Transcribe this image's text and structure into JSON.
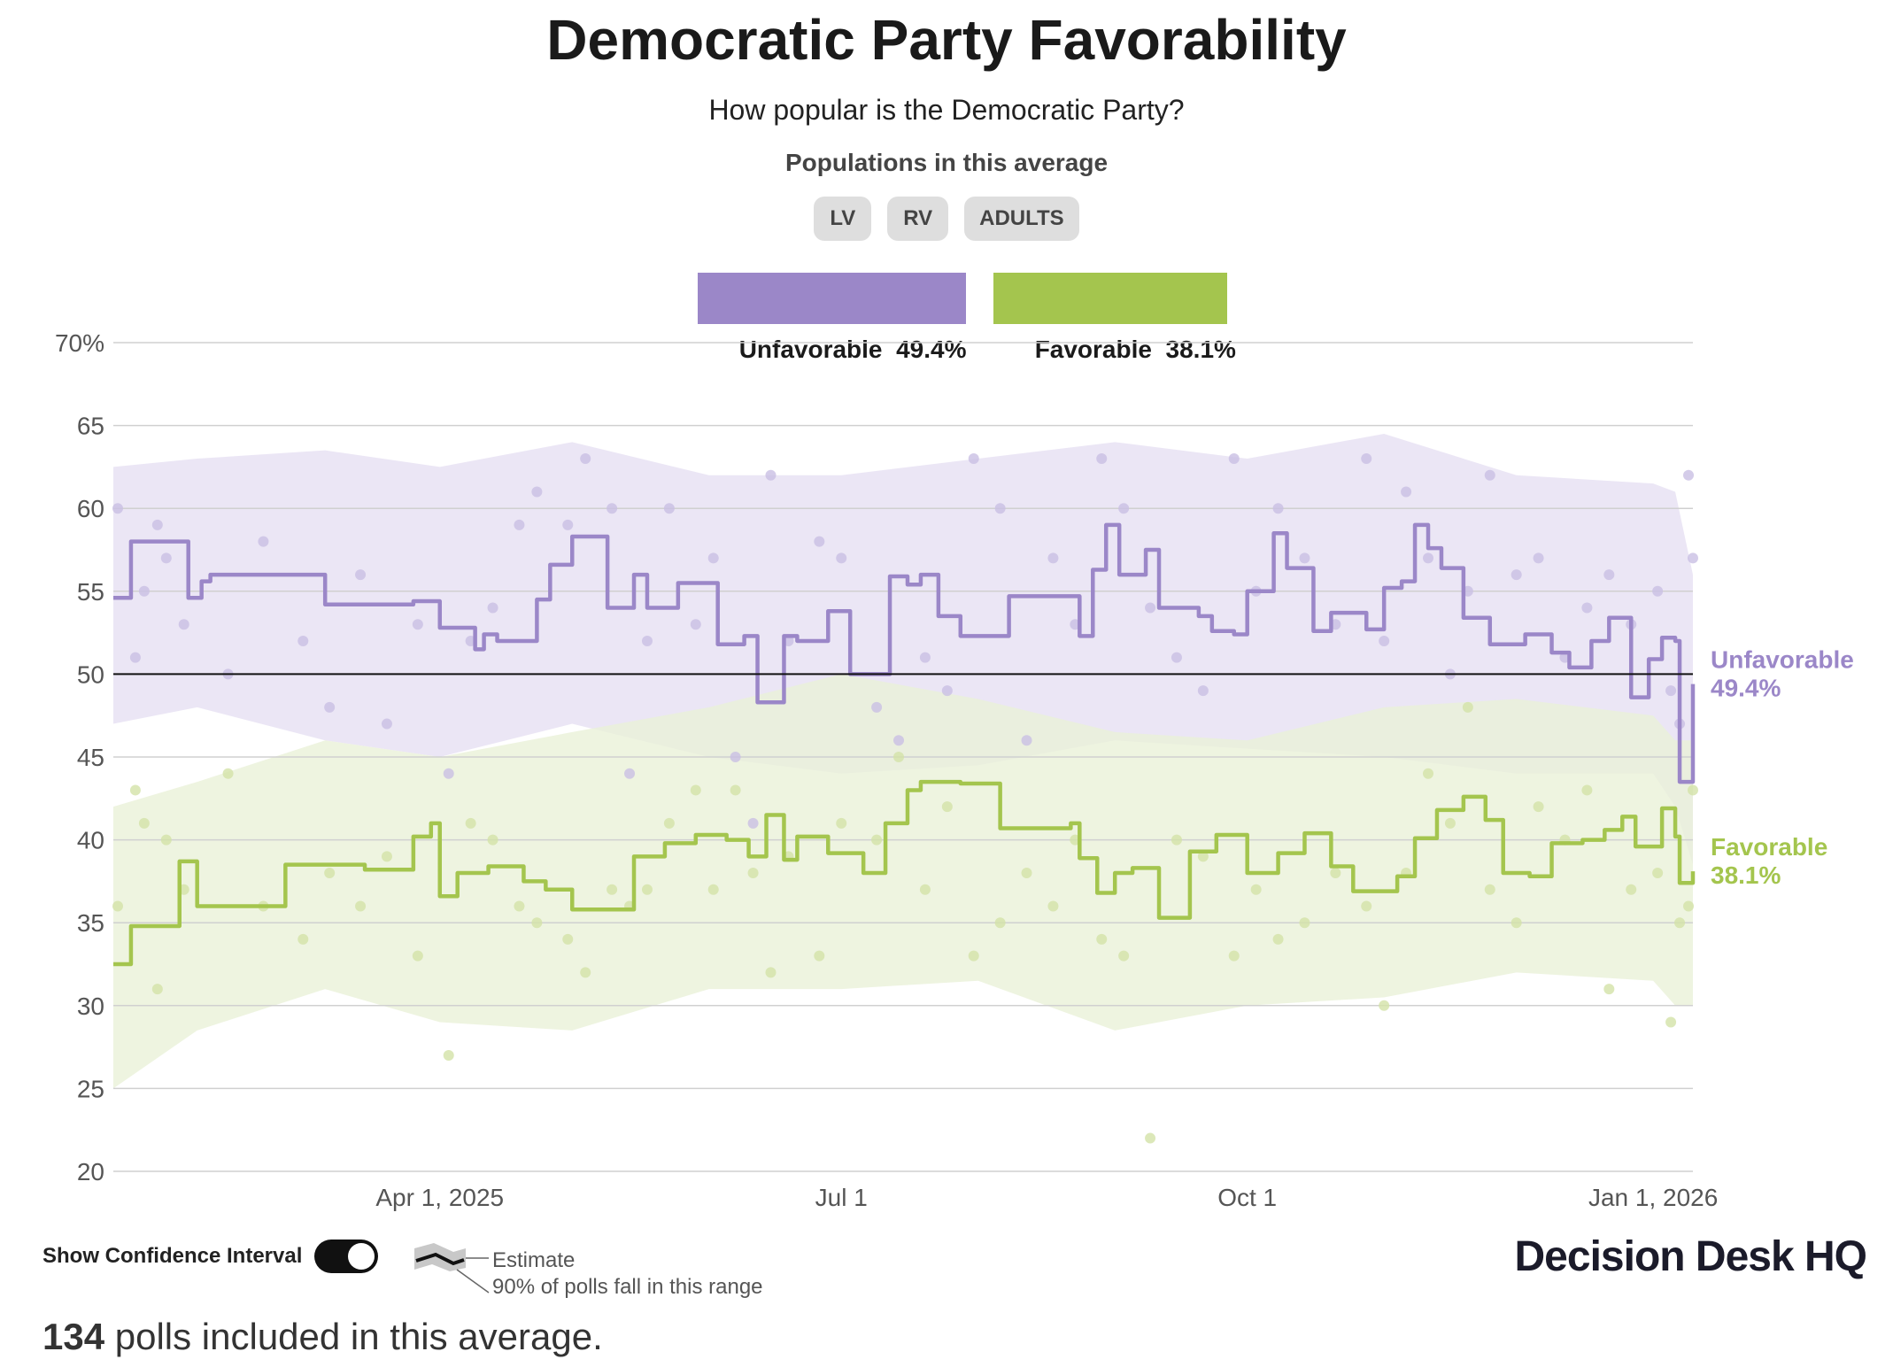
{
  "header": {
    "title": "Democratic Party Favorability",
    "subtitle": "How popular is the Democratic Party?",
    "populations_heading": "Populations in this average",
    "populations": [
      "LV",
      "RV",
      "ADULTS"
    ]
  },
  "legend": {
    "unfavorable": {
      "label": "Unfavorable",
      "value": "49.4%",
      "color": "#9b87c8"
    },
    "favorable": {
      "label": "Favorable",
      "value": "38.1%",
      "color": "#a4c54e"
    }
  },
  "footer": {
    "confidence_toggle_label": "Show Confidence Interval",
    "confidence_toggle_on": true,
    "key_estimate": "Estimate",
    "key_range": "90% of polls fall in this range",
    "polls_count": "134",
    "polls_text": " polls included in this average.",
    "brand": "Decision Desk HQ"
  },
  "chart_data": {
    "type": "line",
    "xlabel": "",
    "ylabel": "",
    "ylim": [
      20,
      70
    ],
    "xlim": [
      "2025-01-17",
      "2026-01-10"
    ],
    "y_ticks": [
      "70%",
      "65",
      "60",
      "55",
      "50",
      "45",
      "40",
      "35",
      "30",
      "25",
      "20"
    ],
    "y_tick_values": [
      70,
      65,
      60,
      55,
      50,
      45,
      40,
      35,
      30,
      25,
      20
    ],
    "x_ticks": [
      {
        "label": "Apr 1, 2025",
        "date": "2025-04-01"
      },
      {
        "label": "Jul 1",
        "date": "2025-07-01"
      },
      {
        "label": "Oct 1",
        "date": "2025-10-01"
      },
      {
        "label": "Jan 1, 2026",
        "date": "2026-01-01"
      }
    ],
    "reference_line": 50,
    "grid": true,
    "series": [
      {
        "name": "Unfavorable",
        "color": "#9b87c8",
        "band_color": "#e6e0f3",
        "end_label": "Unfavorable",
        "end_value": "49.4%",
        "points": [
          [
            "2025-01-17",
            54.6
          ],
          [
            "2025-01-21",
            58.0
          ],
          [
            "2025-02-03",
            54.6
          ],
          [
            "2025-02-06",
            55.6
          ],
          [
            "2025-02-08",
            56.0
          ],
          [
            "2025-03-06",
            54.2
          ],
          [
            "2025-03-26",
            54.4
          ],
          [
            "2025-04-01",
            52.8
          ],
          [
            "2025-04-09",
            51.5
          ],
          [
            "2025-04-11",
            52.4
          ],
          [
            "2025-04-14",
            52.0
          ],
          [
            "2025-04-23",
            54.5
          ],
          [
            "2025-04-26",
            56.6
          ],
          [
            "2025-05-01",
            58.3
          ],
          [
            "2025-05-09",
            54.0
          ],
          [
            "2025-05-15",
            56.0
          ],
          [
            "2025-05-18",
            54.0
          ],
          [
            "2025-05-25",
            55.5
          ],
          [
            "2025-06-03",
            51.8
          ],
          [
            "2025-06-09",
            52.3
          ],
          [
            "2025-06-12",
            48.3
          ],
          [
            "2025-06-18",
            52.3
          ],
          [
            "2025-06-21",
            52.0
          ],
          [
            "2025-06-28",
            53.8
          ],
          [
            "2025-07-03",
            50.0
          ],
          [
            "2025-07-12",
            55.9
          ],
          [
            "2025-07-16",
            55.4
          ],
          [
            "2025-07-19",
            56.0
          ],
          [
            "2025-07-23",
            53.5
          ],
          [
            "2025-07-28",
            52.3
          ],
          [
            "2025-08-08",
            54.7
          ],
          [
            "2025-08-24",
            52.3
          ],
          [
            "2025-08-27",
            56.3
          ],
          [
            "2025-08-30",
            59.0
          ],
          [
            "2025-09-02",
            56.0
          ],
          [
            "2025-09-08",
            57.5
          ],
          [
            "2025-09-11",
            54.0
          ],
          [
            "2025-09-20",
            53.5
          ],
          [
            "2025-09-23",
            52.6
          ],
          [
            "2025-09-28",
            52.4
          ],
          [
            "2025-10-01",
            55.0
          ],
          [
            "2025-10-07",
            58.5
          ],
          [
            "2025-10-10",
            56.4
          ],
          [
            "2025-10-16",
            52.6
          ],
          [
            "2025-10-20",
            53.7
          ],
          [
            "2025-10-28",
            52.7
          ],
          [
            "2025-11-01",
            55.2
          ],
          [
            "2025-11-05",
            55.6
          ],
          [
            "2025-11-08",
            59.0
          ],
          [
            "2025-11-11",
            57.6
          ],
          [
            "2025-11-14",
            56.4
          ],
          [
            "2025-11-19",
            53.4
          ],
          [
            "2025-11-25",
            51.8
          ],
          [
            "2025-12-03",
            52.4
          ],
          [
            "2025-12-09",
            51.3
          ],
          [
            "2025-12-13",
            50.4
          ],
          [
            "2025-12-18",
            52.0
          ],
          [
            "2025-12-22",
            53.4
          ],
          [
            "2025-12-27",
            48.6
          ],
          [
            "2025-12-31",
            50.9
          ],
          [
            "2026-01-03",
            52.2
          ],
          [
            "2026-01-06",
            52.0
          ],
          [
            "2026-01-07",
            43.5
          ],
          [
            "2026-01-09",
            43.5
          ],
          [
            "2026-01-10",
            49.4
          ]
        ],
        "band": [
          [
            "2025-01-17",
            47.0,
            62.5
          ],
          [
            "2025-02-05",
            48.0,
            63.0
          ],
          [
            "2025-03-06",
            46.0,
            63.5
          ],
          [
            "2025-04-01",
            45.0,
            62.5
          ],
          [
            "2025-05-01",
            47.0,
            64.0
          ],
          [
            "2025-06-01",
            45.0,
            62.0
          ],
          [
            "2025-07-01",
            44.0,
            62.0
          ],
          [
            "2025-08-01",
            44.5,
            63.0
          ],
          [
            "2025-09-01",
            46.0,
            64.0
          ],
          [
            "2025-10-01",
            45.5,
            63.0
          ],
          [
            "2025-11-01",
            45.0,
            64.5
          ],
          [
            "2025-12-01",
            44.0,
            62.0
          ],
          [
            "2026-01-01",
            44.0,
            61.5
          ],
          [
            "2026-01-06",
            42.0,
            61.0
          ],
          [
            "2026-01-10",
            38.5,
            56.0
          ]
        ]
      },
      {
        "name": "Favorable",
        "color": "#a4c54e",
        "band_color": "#eaf1d8",
        "end_label": "Favorable",
        "end_value": "38.1%",
        "points": [
          [
            "2025-01-17",
            32.5
          ],
          [
            "2025-01-21",
            34.8
          ],
          [
            "2025-02-01",
            38.7
          ],
          [
            "2025-02-05",
            36.0
          ],
          [
            "2025-02-25",
            38.5
          ],
          [
            "2025-03-15",
            38.2
          ],
          [
            "2025-03-26",
            40.2
          ],
          [
            "2025-03-30",
            41.0
          ],
          [
            "2025-04-01",
            36.6
          ],
          [
            "2025-04-05",
            38.0
          ],
          [
            "2025-04-12",
            38.4
          ],
          [
            "2025-04-20",
            37.5
          ],
          [
            "2025-04-25",
            37.0
          ],
          [
            "2025-05-01",
            35.8
          ],
          [
            "2025-05-12",
            35.8
          ],
          [
            "2025-05-15",
            39.0
          ],
          [
            "2025-05-22",
            39.8
          ],
          [
            "2025-05-29",
            40.3
          ],
          [
            "2025-06-05",
            40.0
          ],
          [
            "2025-06-10",
            39.0
          ],
          [
            "2025-06-14",
            41.5
          ],
          [
            "2025-06-18",
            38.8
          ],
          [
            "2025-06-21",
            40.2
          ],
          [
            "2025-06-28",
            39.2
          ],
          [
            "2025-07-06",
            38.0
          ],
          [
            "2025-07-11",
            41.0
          ],
          [
            "2025-07-16",
            43.0
          ],
          [
            "2025-07-19",
            43.5
          ],
          [
            "2025-07-28",
            43.4
          ],
          [
            "2025-08-06",
            40.7
          ],
          [
            "2025-08-22",
            41.0
          ],
          [
            "2025-08-24",
            38.9
          ],
          [
            "2025-08-28",
            36.8
          ],
          [
            "2025-09-01",
            38.0
          ],
          [
            "2025-09-05",
            38.3
          ],
          [
            "2025-09-11",
            35.3
          ],
          [
            "2025-09-18",
            39.3
          ],
          [
            "2025-09-24",
            40.3
          ],
          [
            "2025-10-01",
            38.0
          ],
          [
            "2025-10-08",
            39.2
          ],
          [
            "2025-10-14",
            40.4
          ],
          [
            "2025-10-20",
            38.4
          ],
          [
            "2025-10-25",
            36.9
          ],
          [
            "2025-11-04",
            37.8
          ],
          [
            "2025-11-08",
            40.1
          ],
          [
            "2025-11-13",
            41.8
          ],
          [
            "2025-11-19",
            42.6
          ],
          [
            "2025-11-24",
            41.2
          ],
          [
            "2025-11-28",
            38.0
          ],
          [
            "2025-12-04",
            37.8
          ],
          [
            "2025-12-09",
            39.8
          ],
          [
            "2025-12-16",
            40.0
          ],
          [
            "2025-12-21",
            40.6
          ],
          [
            "2025-12-25",
            41.4
          ],
          [
            "2025-12-28",
            39.6
          ],
          [
            "2026-01-03",
            41.9
          ],
          [
            "2026-01-06",
            40.2
          ],
          [
            "2026-01-07",
            37.4
          ],
          [
            "2026-01-09",
            37.4
          ],
          [
            "2026-01-10",
            38.1
          ]
        ],
        "band": [
          [
            "2025-01-17",
            25.0,
            42.0
          ],
          [
            "2025-02-05",
            28.5,
            43.5
          ],
          [
            "2025-03-06",
            31.0,
            46.0
          ],
          [
            "2025-04-01",
            29.0,
            45.0
          ],
          [
            "2025-05-01",
            28.5,
            46.5
          ],
          [
            "2025-06-01",
            31.0,
            48.0
          ],
          [
            "2025-07-01",
            31.0,
            50.0
          ],
          [
            "2025-08-01",
            31.5,
            48.5
          ],
          [
            "2025-09-01",
            28.5,
            46.5
          ],
          [
            "2025-10-01",
            30.0,
            46.0
          ],
          [
            "2025-11-01",
            30.5,
            48.0
          ],
          [
            "2025-12-01",
            32.0,
            48.5
          ],
          [
            "2026-01-01",
            31.5,
            47.5
          ],
          [
            "2026-01-06",
            30.0,
            46.0
          ],
          [
            "2026-01-10",
            30.0,
            46.0
          ]
        ]
      }
    ],
    "polls": [
      [
        "2025-01-18",
        60,
        36
      ],
      [
        "2025-01-22",
        51,
        43
      ],
      [
        "2025-01-24",
        55,
        41
      ],
      [
        "2025-01-27",
        59,
        31
      ],
      [
        "2025-01-29",
        57,
        40
      ],
      [
        "2025-02-02",
        53,
        37
      ],
      [
        "2025-02-12",
        50,
        44
      ],
      [
        "2025-02-20",
        58,
        36
      ],
      [
        "2025-03-01",
        52,
        34
      ],
      [
        "2025-03-07",
        48,
        38
      ],
      [
        "2025-03-14",
        56,
        36
      ],
      [
        "2025-03-20",
        47,
        39
      ],
      [
        "2025-03-27",
        53,
        33
      ],
      [
        "2025-04-03",
        44,
        27
      ],
      [
        "2025-04-08",
        52,
        41
      ],
      [
        "2025-04-13",
        54,
        40
      ],
      [
        "2025-04-19",
        59,
        36
      ],
      [
        "2025-04-23",
        61,
        35
      ],
      [
        "2025-04-30",
        59,
        34
      ],
      [
        "2025-05-04",
        63,
        32
      ],
      [
        "2025-05-10",
        60,
        37
      ],
      [
        "2025-05-14",
        44,
        36
      ],
      [
        "2025-05-18",
        52,
        37
      ],
      [
        "2025-05-23",
        60,
        41
      ],
      [
        "2025-05-29",
        53,
        43
      ],
      [
        "2025-06-02",
        57,
        37
      ],
      [
        "2025-06-07",
        45,
        43
      ],
      [
        "2025-06-11",
        41,
        38
      ],
      [
        "2025-06-15",
        62,
        32
      ],
      [
        "2025-06-19",
        52,
        39
      ],
      [
        "2025-06-26",
        58,
        33
      ],
      [
        "2025-07-01",
        57,
        41
      ],
      [
        "2025-07-09",
        48,
        40
      ],
      [
        "2025-07-14",
        46,
        45
      ],
      [
        "2025-07-20",
        51,
        37
      ],
      [
        "2025-07-25",
        49,
        42
      ],
      [
        "2025-07-31",
        63,
        33
      ],
      [
        "2025-08-06",
        60,
        35
      ],
      [
        "2025-08-12",
        46,
        38
      ],
      [
        "2025-08-18",
        57,
        36
      ],
      [
        "2025-08-23",
        53,
        40
      ],
      [
        "2025-08-29",
        63,
        34
      ],
      [
        "2025-09-03",
        60,
        33
      ],
      [
        "2025-09-09",
        54,
        22
      ],
      [
        "2025-09-15",
        51,
        40
      ],
      [
        "2025-09-21",
        49,
        39
      ],
      [
        "2025-09-28",
        63,
        33
      ],
      [
        "2025-10-03",
        55,
        37
      ],
      [
        "2025-10-08",
        60,
        34
      ],
      [
        "2025-10-14",
        57,
        35
      ],
      [
        "2025-10-21",
        53,
        38
      ],
      [
        "2025-10-28",
        63,
        36
      ],
      [
        "2025-11-01",
        52,
        30
      ],
      [
        "2025-11-06",
        61,
        38
      ],
      [
        "2025-11-11",
        57,
        44
      ],
      [
        "2025-11-16",
        50,
        41
      ],
      [
        "2025-11-20",
        55,
        48
      ],
      [
        "2025-11-25",
        62,
        37
      ],
      [
        "2025-12-01",
        56,
        35
      ],
      [
        "2025-12-06",
        57,
        42
      ],
      [
        "2025-12-12",
        51,
        40
      ],
      [
        "2025-12-17",
        54,
        43
      ],
      [
        "2025-12-22",
        56,
        31
      ],
      [
        "2025-12-27",
        53,
        37
      ],
      [
        "2026-01-02",
        55,
        38
      ],
      [
        "2026-01-05",
        49,
        29
      ],
      [
        "2026-01-07",
        47,
        35
      ],
      [
        "2026-01-09",
        62,
        36
      ],
      [
        "2026-01-10",
        57,
        43
      ]
    ]
  }
}
